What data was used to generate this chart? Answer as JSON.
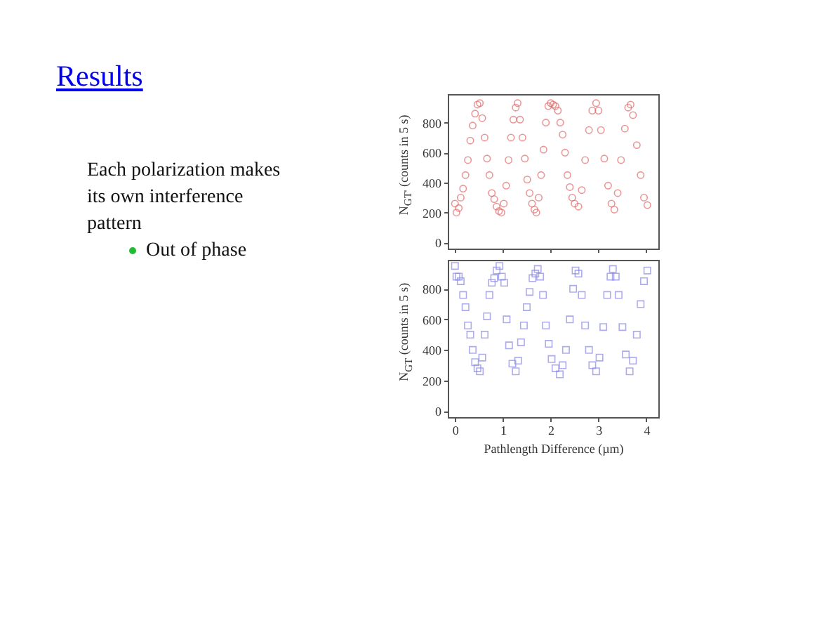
{
  "chart_data": [
    {
      "type": "scatter",
      "annotations": [
        "Results",
        "Each polarization makes its own interference pattern",
        "Out of phase"
      ],
      "ylabel": "N$_{GT'}$ (counts in 5 s)",
      "xlim": [
        -0.15,
        4.25
      ],
      "xticks": [
        0,
        1,
        2,
        3,
        4
      ],
      "ylim": [
        -40,
        990
      ],
      "yticks": [
        0,
        200,
        400,
        600,
        800
      ],
      "tick_labels": "y",
      "marker": "circle",
      "grid": false,
      "x": [
        0.0,
        0.03,
        0.08,
        0.12,
        0.17,
        0.22,
        0.27,
        0.32,
        0.37,
        0.42,
        0.47,
        0.52,
        0.57,
        0.62,
        0.67,
        0.72,
        0.77,
        0.82,
        0.87,
        0.92,
        0.97,
        1.02,
        1.07,
        1.12,
        1.17,
        1.22,
        1.27,
        1.31,
        1.36,
        1.41,
        1.46,
        1.51,
        1.56,
        1.61,
        1.66,
        1.7,
        1.75,
        1.8,
        1.85,
        1.9,
        1.95,
        2.0,
        2.05,
        2.1,
        2.15,
        2.2,
        2.25,
        2.3,
        2.35,
        2.4,
        2.45,
        2.5,
        2.58,
        2.65,
        2.72,
        2.8,
        2.87,
        2.95,
        3.0,
        3.05,
        3.12,
        3.2,
        3.27,
        3.33,
        3.4,
        3.47,
        3.55,
        3.62,
        3.67,
        3.72,
        3.8,
        3.88,
        3.95,
        4.02
      ],
      "series": [
        {
          "color": "#e06a6a",
          "values": [
            260,
            200,
            230,
            300,
            360,
            450,
            550,
            680,
            780,
            860,
            920,
            930,
            830,
            700,
            560,
            450,
            330,
            290,
            240,
            210,
            200,
            260,
            380,
            550,
            700,
            820,
            900,
            930,
            820,
            700,
            560,
            420,
            330,
            260,
            220,
            200,
            300,
            450,
            620,
            800,
            910,
            930,
            920,
            910,
            880,
            800,
            720,
            600,
            450,
            370,
            300,
            260,
            240,
            350,
            550,
            750,
            880,
            930,
            880,
            750,
            560,
            380,
            260,
            220,
            330,
            550,
            760,
            900,
            920,
            850,
            650,
            450,
            300,
            250
          ]
        }
      ]
    },
    {
      "type": "scatter",
      "ylabel": "N$_{GT}$ (counts in 5 s)",
      "xlabel": "Pathlength Difference (µm)",
      "xlim": [
        -0.15,
        4.25
      ],
      "xticks": [
        0,
        1,
        2,
        3,
        4
      ],
      "ylim": [
        -40,
        990
      ],
      "yticks": [
        0,
        200,
        400,
        600,
        800
      ],
      "marker": "square",
      "grid": false,
      "x": [
        0.0,
        0.03,
        0.08,
        0.12,
        0.17,
        0.22,
        0.27,
        0.32,
        0.37,
        0.42,
        0.47,
        0.52,
        0.57,
        0.62,
        0.67,
        0.72,
        0.77,
        0.82,
        0.87,
        0.93,
        0.98,
        1.03,
        1.08,
        1.13,
        1.2,
        1.27,
        1.32,
        1.38,
        1.44,
        1.5,
        1.56,
        1.62,
        1.68,
        1.73,
        1.78,
        1.84,
        1.9,
        1.96,
        2.02,
        2.1,
        2.19,
        2.25,
        2.32,
        2.4,
        2.47,
        2.52,
        2.58,
        2.65,
        2.72,
        2.8,
        2.87,
        2.95,
        3.02,
        3.1,
        3.18,
        3.25,
        3.3,
        3.36,
        3.42,
        3.5,
        3.57,
        3.65,
        3.72,
        3.8,
        3.88,
        3.95,
        4.02
      ],
      "series": [
        {
          "color": "#8a8ae6",
          "values": [
            950,
            880,
            880,
            850,
            760,
            680,
            560,
            500,
            400,
            320,
            280,
            260,
            350,
            500,
            620,
            760,
            840,
            870,
            920,
            950,
            880,
            840,
            600,
            430,
            310,
            260,
            330,
            450,
            560,
            680,
            780,
            870,
            900,
            930,
            880,
            760,
            560,
            440,
            340,
            280,
            240,
            300,
            400,
            600,
            800,
            920,
            900,
            760,
            560,
            400,
            300,
            260,
            350,
            550,
            760,
            880,
            930,
            880,
            760,
            550,
            370,
            260,
            330,
            500,
            700,
            850,
            920
          ]
        }
      ]
    }
  ]
}
